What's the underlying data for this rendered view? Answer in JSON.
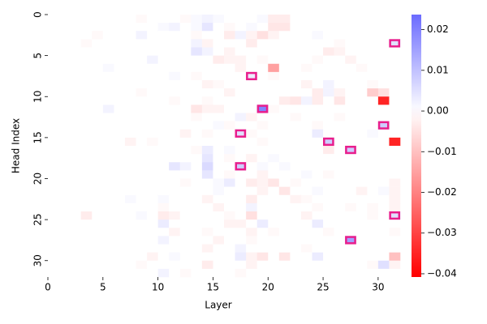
{
  "chart_data": {
    "type": "heatmap",
    "cmap": "bwr",
    "xlabel": "Layer",
    "ylabel": "Head Index",
    "xlim": [
      0,
      32
    ],
    "xticks": [
      0,
      5,
      10,
      15,
      20,
      25,
      30
    ],
    "ylim": [
      0,
      32
    ],
    "yticks": [
      0,
      5,
      10,
      15,
      20,
      25,
      30
    ],
    "clim": [
      -0.0408,
      0.0237
    ],
    "cticks": [
      {
        "value": -0.04,
        "label": "−0.04"
      },
      {
        "value": -0.03,
        "label": "−0.03"
      },
      {
        "value": -0.02,
        "label": "−0.02"
      },
      {
        "value": -0.01,
        "label": "−0.01"
      },
      {
        "value": 0,
        "label": "0.00"
      },
      0.01,
      0.02
    ],
    "highlight_color": "#e91e8c",
    "highlights": [
      [
        31,
        3
      ],
      [
        18,
        7
      ],
      [
        19,
        11
      ],
      [
        30,
        13
      ],
      [
        17,
        14
      ],
      [
        25,
        15
      ],
      [
        27,
        16
      ],
      [
        17,
        18
      ],
      [
        31,
        24
      ],
      [
        27,
        27
      ]
    ],
    "values": [
      [
        0,
        0,
        0,
        0,
        0,
        0,
        0,
        0,
        -0.001,
        0,
        0,
        0,
        -0.001,
        0.001,
        0.002,
        0.001,
        0,
        0,
        0,
        0.001,
        -0.003,
        -0.003,
        0,
        0,
        0,
        0,
        0,
        0,
        0,
        0,
        0,
        0
      ],
      [
        0,
        0,
        0,
        0,
        0,
        0,
        0,
        0,
        0,
        0,
        0.001,
        0.002,
        0,
        0.001,
        0.004,
        0,
        -0.001,
        0,
        0.001,
        0,
        -0.004,
        -0.004,
        0,
        0,
        0,
        0,
        0,
        0,
        0,
        0,
        0,
        0
      ],
      [
        0,
        0,
        0,
        0,
        -0.001,
        0,
        0,
        0,
        0.002,
        0,
        0,
        0,
        0,
        -0.001,
        0,
        0,
        -0.003,
        0.002,
        -0.002,
        -0.005,
        -0.002,
        0,
        0,
        0,
        0.001,
        0,
        0,
        0,
        0,
        0,
        0,
        0
      ],
      [
        0,
        0,
        0,
        -0.001,
        0,
        0,
        0,
        0,
        0,
        0,
        0,
        0,
        0,
        0.002,
        -0.002,
        0,
        0,
        0,
        -0.003,
        0,
        0,
        0,
        0,
        0,
        0,
        0,
        -0.001,
        0,
        0,
        0,
        0,
        0.005
      ],
      [
        0,
        0,
        0,
        0,
        0,
        0,
        0,
        0,
        0,
        0,
        0,
        0,
        0,
        0.004,
        0.002,
        0,
        -0.002,
        0,
        0,
        0,
        0,
        0,
        0,
        0,
        0,
        -0.003,
        -0.002,
        0,
        0,
        0,
        0,
        0
      ],
      [
        0,
        0,
        0,
        0,
        0,
        0,
        0,
        0,
        0,
        0.002,
        0,
        0,
        0,
        0,
        0,
        -0.003,
        -0.002,
        -0.002,
        0,
        -0.001,
        0,
        0,
        0,
        0,
        -0.001,
        0,
        0,
        -0.002,
        0,
        0,
        0,
        0
      ],
      [
        0,
        0,
        0,
        0,
        0,
        0.001,
        0,
        0,
        0,
        0,
        0,
        0,
        0,
        0,
        0,
        0,
        0,
        -0.002,
        0,
        0,
        -0.015,
        0,
        0,
        -0.001,
        0,
        0,
        0,
        0,
        -0.001,
        0,
        0,
        0
      ],
      [
        0,
        0,
        0,
        0,
        0,
        0,
        0,
        0,
        0,
        0,
        0,
        0.001,
        0,
        -0.001,
        0,
        0,
        0,
        0,
        0.003,
        0,
        -0.001,
        0,
        0,
        0,
        0,
        0,
        0,
        0,
        0,
        0,
        0,
        0
      ],
      [
        0,
        0,
        0,
        0,
        0,
        0,
        0,
        0,
        0,
        0,
        0,
        0,
        0,
        0,
        -0.002,
        -0.001,
        0,
        0,
        0,
        0,
        0,
        0,
        0,
        -0.002,
        0,
        0.002,
        0,
        0,
        0,
        -0.001,
        0,
        0
      ],
      [
        0,
        0,
        0,
        0,
        0,
        0,
        0,
        0,
        -0.001,
        0,
        0,
        0,
        0,
        0,
        0,
        0,
        -0.002,
        0,
        0,
        0,
        0,
        0,
        0,
        0,
        -0.003,
        0.002,
        -0.002,
        0,
        0,
        -0.008,
        -0.005,
        0
      ],
      [
        0,
        0,
        0,
        0,
        0,
        0,
        0,
        0,
        0,
        0,
        0,
        -0.001,
        0,
        0,
        -0.001,
        0,
        0,
        0,
        0,
        0,
        0,
        -0.003,
        -0.004,
        0.002,
        -0.003,
        0,
        -0.004,
        0,
        0,
        0,
        -0.035,
        0
      ],
      [
        0,
        0,
        0,
        0,
        0,
        0.002,
        0,
        0,
        0,
        0,
        0,
        0,
        0,
        -0.004,
        -0.002,
        -0.002,
        0,
        0,
        0,
        0.02,
        -0.001,
        0,
        0,
        0,
        0,
        0,
        0,
        0,
        0,
        0,
        0,
        0
      ],
      [
        0,
        0,
        0,
        0,
        0,
        0,
        0,
        0,
        0,
        0,
        0,
        0,
        0,
        -0.001,
        0,
        0,
        0,
        0.002,
        -0.002,
        0,
        0,
        0,
        -0.001,
        0,
        0,
        0,
        -0.001,
        0,
        0,
        0,
        0,
        0
      ],
      [
        0,
        0,
        0,
        0,
        0,
        0,
        0,
        0,
        0,
        0,
        0,
        0,
        0,
        0,
        0,
        0.001,
        -0.001,
        0,
        0,
        -0.001,
        0,
        0,
        0,
        0,
        -0.001,
        0,
        0,
        0,
        0,
        0,
        0.008,
        0
      ],
      [
        0,
        0,
        0,
        0,
        0,
        0,
        0,
        0,
        0,
        0,
        0,
        0,
        -0.002,
        0,
        -0.001,
        0,
        0,
        0.005,
        -0.001,
        0,
        0,
        0,
        0,
        0,
        0.003,
        0,
        0,
        0,
        0,
        0.001,
        0,
        0
      ],
      [
        0,
        0,
        0,
        0,
        0,
        0,
        0,
        -0.002,
        0,
        -0.001,
        0,
        0,
        0,
        0,
        0,
        0,
        0,
        0,
        0,
        -0.001,
        0,
        0,
        0,
        0,
        0,
        0.008,
        0,
        0,
        0,
        0,
        0,
        -0.035
      ],
      [
        0,
        0,
        0,
        0,
        0,
        0,
        0,
        0,
        0,
        0,
        0,
        0,
        0,
        -0.001,
        0.003,
        0,
        0.001,
        0,
        0,
        0,
        0,
        0,
        0,
        0,
        0,
        -0.003,
        0,
        0.008,
        0,
        0,
        0,
        0
      ],
      [
        0,
        0,
        0,
        0,
        0,
        0,
        0,
        0,
        0,
        0,
        0,
        0,
        0,
        0,
        0.004,
        0,
        -0.001,
        0,
        -0.002,
        0,
        0.001,
        0,
        0,
        0,
        0,
        0,
        0,
        0,
        0,
        0,
        0,
        0
      ],
      [
        0,
        0,
        0,
        0,
        0,
        0,
        0,
        0,
        0,
        0,
        0,
        0.004,
        0.002,
        0,
        0.006,
        0,
        0,
        0.008,
        0,
        0.001,
        0,
        0.001,
        0,
        0,
        0,
        0,
        0,
        0,
        0,
        0,
        0,
        0
      ],
      [
        0,
        0,
        0,
        0,
        0,
        0,
        0,
        0,
        0,
        0,
        0,
        0,
        0,
        0,
        0.004,
        0,
        -0.001,
        0,
        0,
        -0.002,
        0,
        0,
        0,
        0.001,
        0,
        -0.001,
        0,
        0,
        0,
        0,
        0,
        0
      ],
      [
        0,
        0,
        0,
        0,
        0,
        0,
        0,
        0,
        0,
        0,
        0,
        0,
        -0.001,
        0,
        0,
        0.001,
        0.003,
        0,
        -0.003,
        -0.002,
        -0.004,
        0,
        -0.001,
        0,
        0,
        0,
        0,
        0,
        0,
        0,
        0,
        -0.002
      ],
      [
        0,
        0,
        0,
        0,
        0,
        0,
        0,
        0,
        0,
        0,
        0,
        0,
        0,
        0,
        0,
        0.001,
        0,
        0,
        0,
        -0.002,
        0,
        -0.004,
        0,
        0,
        0.001,
        0,
        0,
        0,
        -0.002,
        0,
        0.001,
        -0.002
      ],
      [
        0,
        0,
        0,
        0,
        0,
        0,
        0,
        0.001,
        0,
        0,
        0.001,
        0,
        0,
        0,
        -0.002,
        0,
        0,
        0,
        -0.003,
        0,
        0,
        0,
        -0.002,
        -0.001,
        0,
        0,
        0,
        0,
        0,
        0,
        0,
        -0.002
      ],
      [
        0,
        0,
        0,
        0,
        0,
        0,
        0,
        0,
        0,
        0,
        -0.001,
        0,
        0,
        0,
        0,
        -0.002,
        0,
        0,
        0.002,
        0,
        0,
        0,
        0,
        0,
        -0.001,
        0,
        0,
        -0.001,
        0,
        -0.001,
        0,
        -0.002
      ],
      [
        0,
        0,
        0,
        -0.003,
        0,
        0,
        0,
        0,
        0.001,
        0,
        -0.003,
        -0.002,
        0,
        0,
        0,
        0,
        -0.001,
        0,
        -0.005,
        0,
        0,
        0,
        0,
        -0.002,
        0,
        0,
        0,
        0,
        0,
        -0.001,
        0,
        0.005
      ],
      [
        0,
        0,
        0,
        0,
        0,
        0,
        0,
        0,
        0,
        0,
        0.003,
        0,
        0,
        0,
        0,
        0,
        -0.002,
        -0.002,
        0,
        0.003,
        0,
        0,
        0,
        0,
        0.003,
        0,
        0,
        0,
        0,
        0,
        0,
        0
      ],
      [
        0,
        0,
        0,
        0,
        0,
        0,
        0,
        0,
        0,
        0,
        0,
        -0.002,
        0,
        0,
        -0.001,
        0,
        0,
        0,
        -0.002,
        0,
        -0.001,
        0,
        0,
        0,
        0,
        -0.001,
        0,
        0,
        0,
        0,
        0,
        -0.001
      ],
      [
        0,
        0,
        0,
        0,
        0,
        0,
        0,
        0,
        0,
        0,
        0.002,
        0,
        0,
        0,
        0,
        -0.002,
        0,
        0,
        -0.001,
        0,
        0,
        0,
        0,
        0,
        0,
        0,
        0,
        0.015,
        0,
        0,
        0,
        0
      ],
      [
        0,
        0,
        0,
        0,
        0,
        0,
        0,
        0,
        0,
        0,
        0,
        0,
        0,
        0,
        -0.002,
        0,
        0,
        0.002,
        0,
        0,
        0,
        0,
        0,
        -0.001,
        0,
        0,
        0,
        0,
        0,
        0,
        0,
        0
      ],
      [
        0,
        0,
        0,
        0,
        0,
        0,
        0,
        0,
        0,
        -0.002,
        0,
        0.001,
        0,
        0,
        0,
        0,
        0,
        0.003,
        -0.002,
        -0.004,
        0,
        -0.004,
        0,
        0,
        0.003,
        0,
        0,
        0,
        0,
        0,
        0,
        -0.01
      ],
      [
        0,
        0,
        0,
        0,
        0,
        0,
        0,
        0,
        -0.001,
        0,
        0,
        0,
        0,
        0,
        -0.003,
        0,
        0,
        0,
        -0.002,
        0,
        0,
        0,
        0,
        0,
        0,
        0,
        0,
        0,
        0,
        -0.001,
        0.005,
        -0.002
      ],
      [
        0,
        0,
        0,
        0,
        0,
        0,
        0,
        0,
        0,
        0,
        0.002,
        0,
        -0.001,
        0,
        0,
        0,
        0,
        -0.001,
        0,
        0,
        0,
        0,
        0,
        0,
        0,
        0,
        0,
        0,
        0,
        0,
        0,
        0
      ]
    ]
  }
}
